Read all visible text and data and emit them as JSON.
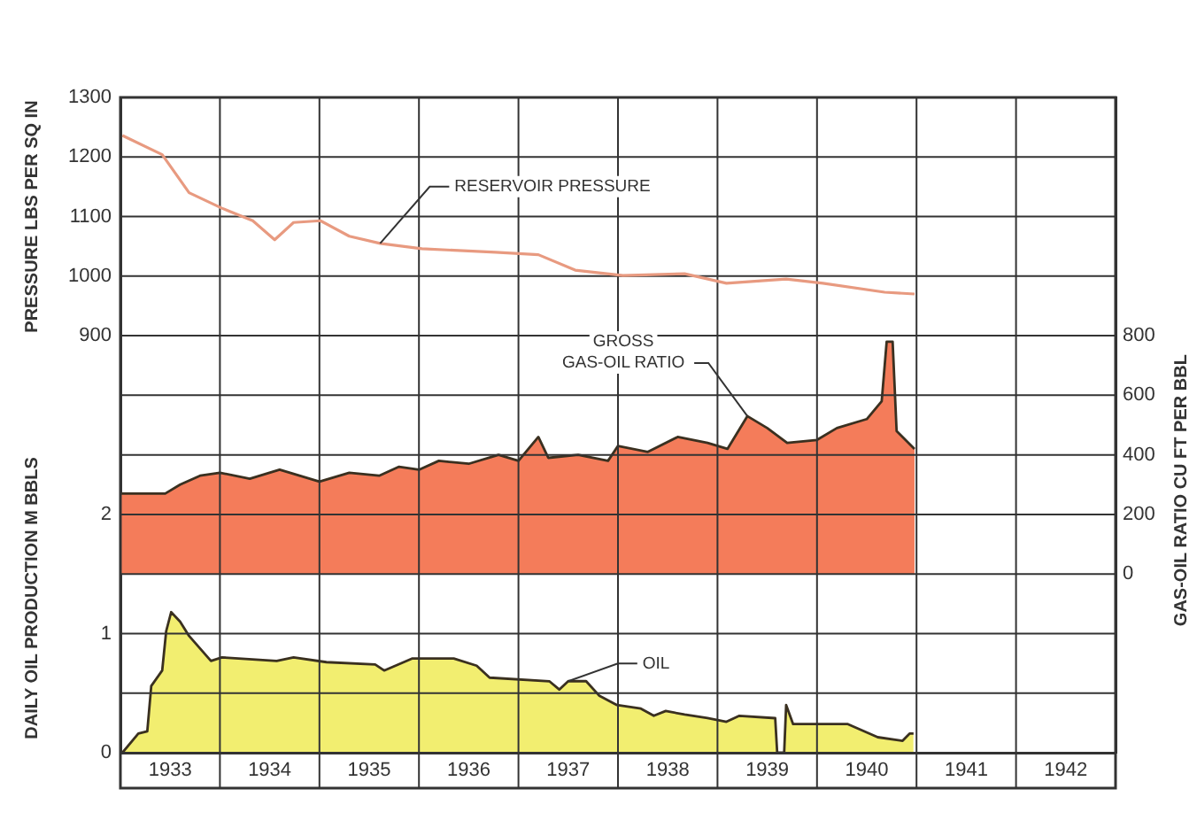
{
  "chart_data": {
    "type": "line",
    "ylabel": "PRESSURE LBS PER SQ IN",
    "y3label": "DAILY OIL PRODUCTION M BBLS",
    "y2label": "GAS-OIL RATIO CU FT PER BBL",
    "xlim": [
      1933,
      1943
    ],
    "xticks": [
      {
        "value": 1933,
        "label": null
      },
      {
        "value": 1933.5,
        "label": "1933"
      },
      {
        "value": 1934,
        "label": null
      },
      {
        "value": 1934.5,
        "label": "1934"
      },
      {
        "value": 1935,
        "label": null
      },
      {
        "value": 1935.5,
        "label": "1935"
      },
      {
        "value": 1936,
        "label": null
      },
      {
        "value": 1936.5,
        "label": "1936"
      },
      {
        "value": 1937,
        "label": null
      },
      {
        "value": 1937.5,
        "label": "1937"
      },
      {
        "value": 1938,
        "label": null
      },
      {
        "value": 1938.5,
        "label": "1938"
      },
      {
        "value": 1939,
        "label": null
      },
      {
        "value": 1939.5,
        "label": "1939"
      },
      {
        "value": 1940,
        "label": null
      },
      {
        "value": 1940.5,
        "label": "1940"
      },
      {
        "value": 1941,
        "label": null
      },
      {
        "value": 1941.5,
        "label": "1941"
      },
      {
        "value": 1942,
        "label": null
      },
      {
        "value": 1942.5,
        "label": "1942"
      },
      {
        "value": 1943,
        "label": null
      }
    ],
    "ylim": [
      200,
      1300
    ],
    "yticks": [
      {
        "value": 200,
        "label": null
      },
      {
        "value": 300,
        "label": null
      },
      {
        "value": 400,
        "label": null
      },
      {
        "value": 500,
        "label": null
      },
      {
        "value": 600,
        "label": null
      },
      {
        "value": 700,
        "label": null
      },
      {
        "value": 800,
        "label": null
      },
      900,
      1000,
      1100,
      1200,
      1300
    ],
    "y2lim": [
      -600,
      1600
    ],
    "y2ticks": [
      0,
      200,
      400,
      600,
      800
    ],
    "y3lim": [
      0,
      5.5
    ],
    "y3ticks": [
      0,
      1,
      2
    ],
    "series": [
      {
        "type": "line",
        "color": "#e89a80",
        "x": [
          1933.02,
          1933.42,
          1933.69,
          1934.02,
          1934.33,
          1934.55,
          1934.74,
          1935.01,
          1935.3,
          1935.61,
          1936.03,
          1936.77,
          1937.2,
          1937.57,
          1938.05,
          1938.67,
          1939.09,
          1939.69,
          1940.06,
          1940.68,
          1940.98
        ],
        "values": [
          1236,
          1204,
          1140,
          1114,
          1093,
          1061,
          1090,
          1093,
          1067,
          1055,
          1046,
          1040,
          1036,
          1010,
          1001,
          1004,
          988,
          995,
          988,
          973,
          970
        ]
      },
      {
        "type": "area",
        "axis": "y2",
        "color": "#f47c5a",
        "x": [
          1933,
          1933.45,
          1933.6,
          1933.8,
          1934,
          1934.3,
          1934.6,
          1935,
          1935.3,
          1935.6,
          1935.8,
          1936,
          1936.2,
          1936.5,
          1936.8,
          1937,
          1937.2,
          1937.3,
          1937.6,
          1937.9,
          1938,
          1938.3,
          1938.6,
          1938.9,
          1939.1,
          1939.3,
          1939.5,
          1939.7,
          1940,
          1940.2,
          1940.5,
          1940.65,
          1940.7,
          1940.76,
          1940.8,
          1940.98
        ],
        "values": [
          270,
          270,
          300,
          330,
          340,
          320,
          350,
          310,
          340,
          330,
          360,
          350,
          380,
          370,
          400,
          380,
          460,
          390,
          400,
          380,
          430,
          410,
          460,
          440,
          420,
          530,
          490,
          440,
          450,
          490,
          520,
          580,
          780,
          780,
          480,
          420
        ]
      },
      {
        "type": "area",
        "axis": "y3",
        "color": "#f2ee70",
        "x": [
          1933.02,
          1933.18,
          1933.27,
          1933.31,
          1933.42,
          1933.46,
          1933.51,
          1933.6,
          1933.69,
          1933.91,
          1934.02,
          1934.57,
          1934.74,
          1935.07,
          1935.56,
          1935.65,
          1935.93,
          1936.35,
          1936.58,
          1936.71,
          1937.31,
          1937.41,
          1937.5,
          1937.68,
          1937.81,
          1937.99,
          1938.23,
          1938.36,
          1938.48,
          1938.67,
          1938.9,
          1939.09,
          1939.22,
          1939.58,
          1939.6,
          1939.67,
          1939.69,
          1939.76,
          1940.31,
          1940.61,
          1940.86,
          1940.93,
          1940.97
        ],
        "values": [
          0,
          0.16,
          0.18,
          0.56,
          0.69,
          1.02,
          1.18,
          1.1,
          0.98,
          0.77,
          0.8,
          0.77,
          0.8,
          0.76,
          0.74,
          0.69,
          0.79,
          0.79,
          0.73,
          0.63,
          0.6,
          0.53,
          0.6,
          0.6,
          0.48,
          0.4,
          0.37,
          0.31,
          0.35,
          0.32,
          0.29,
          0.26,
          0.31,
          0.29,
          0,
          0,
          0.4,
          0.24,
          0.24,
          0.13,
          0.1,
          0.16,
          0.16
        ]
      }
    ],
    "annotations": [
      {
        "text": "RESERVOIR PRESSURE",
        "x": 1935.61,
        "y": 1055
      },
      {
        "text": "GROSS\nGAS-OIL RATIO",
        "x": 1939.3,
        "y": 765
      },
      {
        "text": "OIL",
        "x": 1937.5,
        "y": 320
      }
    ],
    "grid": true,
    "legend": false,
    "marker": "none",
    "line_style": "solid"
  }
}
